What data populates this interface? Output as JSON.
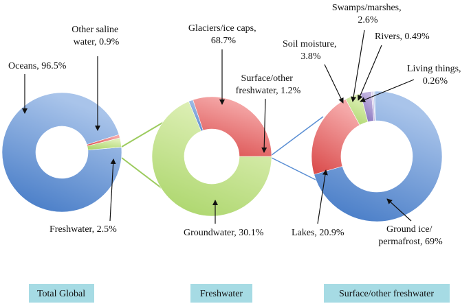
{
  "colors": {
    "blue": "#5b8fd4",
    "blue_light": "#a9c4ea",
    "red": "#e05d5d",
    "red_light": "#f5a9a9",
    "green": "#b8de7a",
    "green_light": "#dff0b8",
    "purple": "#9a87c9",
    "lavender": "#c3b5e0",
    "caption_bg": "#a6dbe4"
  },
  "chart_data": [
    {
      "type": "pie",
      "caption": "Total Global",
      "labels": [
        "Oceans,  96.5%",
        "Other saline water, 0.9%",
        "Freshwater, 2.5%"
      ],
      "values": [
        96.5,
        0.9,
        2.5
      ],
      "series_colors": [
        "blue",
        "red",
        "green"
      ]
    },
    {
      "type": "pie",
      "caption": "Freshwater",
      "labels": [
        "Glaciers/ice caps, 68.7%",
        "Surface/other freshwater, 1.2%",
        "Groundwater, 30.1%"
      ],
      "values": [
        68.7,
        1.2,
        30.1
      ],
      "series_colors": [
        "green",
        "blue",
        "red"
      ]
    },
    {
      "type": "pie",
      "caption": "Surface/other freshwater",
      "labels": [
        "Ground ice/ permafrost, 69%",
        "Lakes, 20.9%",
        "Soil moisture, 3.8%",
        "Swamps/marshes, 2.6%",
        "Rivers, 0.49%",
        "Living things, 0.26%"
      ],
      "values": [
        69,
        20.9,
        3.8,
        2.6,
        0.49,
        0.26
      ],
      "series_colors": [
        "blue",
        "red",
        "green",
        "purple",
        "lavender",
        "blue_light"
      ]
    }
  ]
}
